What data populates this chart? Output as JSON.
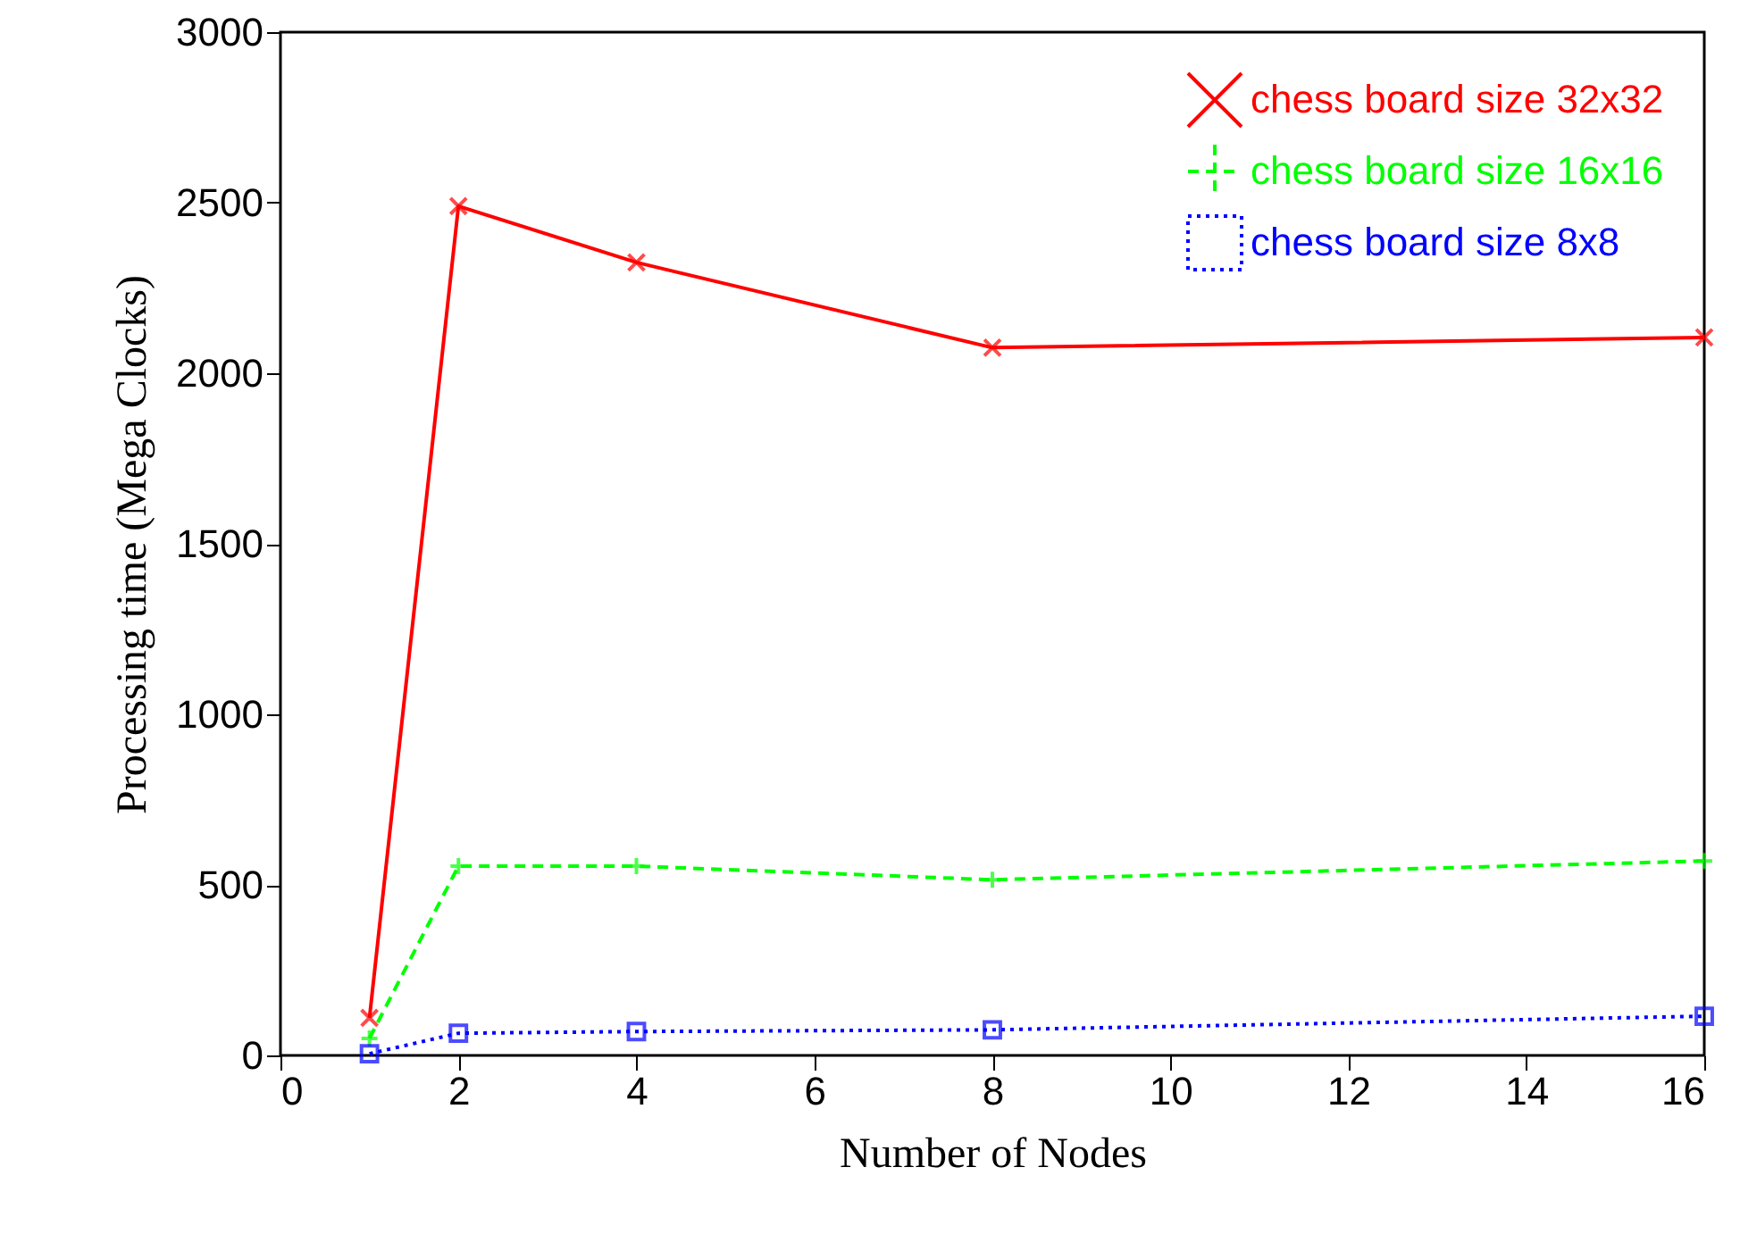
{
  "chart_data": {
    "type": "line",
    "xlabel": "Number of Nodes",
    "ylabel": "Processing time (Mega Clocks)",
    "xlim": [
      0,
      16
    ],
    "xticks": [
      0,
      2,
      4,
      6,
      8,
      10,
      12,
      14,
      16
    ],
    "ylim": [
      0,
      3000
    ],
    "yticks": [
      {
        "value": 0,
        "label": "0"
      },
      {
        "value": 500,
        "label": "500"
      },
      {
        "value": 1000,
        "label": "1000"
      },
      {
        "value": 1500,
        "label": "1500"
      },
      {
        "value": 2000,
        "label": "2000"
      },
      {
        "value": 2500,
        "label": "2500"
      },
      {
        "value": 3000,
        "label": "3000"
      }
    ],
    "grid": false,
    "legend": "top right",
    "x": [
      1,
      2,
      4,
      8,
      16
    ],
    "series": [
      {
        "name": "chess board size 32x32",
        "color": "#ff0000",
        "marker": "cross",
        "line_style": "solid",
        "values": [
          110,
          2490,
          2325,
          2075,
          2105
        ]
      },
      {
        "name": "chess board size 16x16",
        "color": "#00ff00",
        "marker": "plus",
        "line_style": "dashed",
        "values": [
          50,
          555,
          555,
          515,
          570
        ]
      },
      {
        "name": "chess board size 8x8",
        "color": "#0000ff",
        "marker": "square",
        "line_style": "dotted",
        "values": [
          5,
          65,
          70,
          75,
          115
        ]
      }
    ]
  }
}
